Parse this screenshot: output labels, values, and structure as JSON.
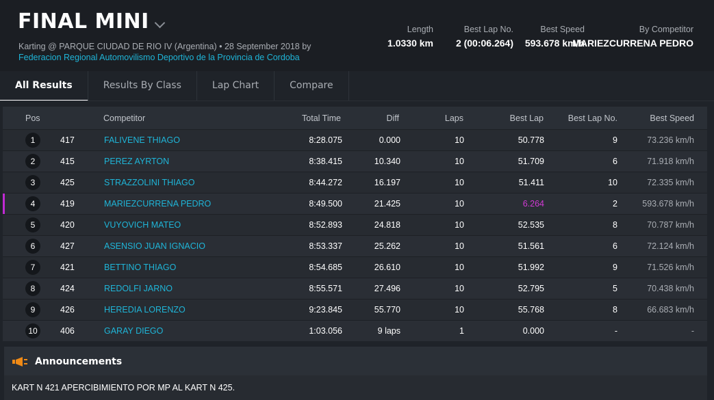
{
  "event": {
    "title": "FINAL MINI",
    "subtitle": "Karting @ PARQUE CIUDAD DE RIO IV (Argentina) • 28 September 2018 by",
    "organizer": "Federacion Regional Automovilismo Deportivo de la Provincia de Cordoba"
  },
  "stats": {
    "length_label": "Length",
    "length_value": "1.0330 km",
    "bestlap_label": "Best Lap No.",
    "bestlap_value": "2 (00:06.264)",
    "bestspeed_label": "Best Speed",
    "bestspeed_value": "593.678 km/h",
    "competitor_label": "By Competitor",
    "competitor_value": "MARIEZCURRENA PEDRO"
  },
  "tabs": [
    "All Results",
    "Results By Class",
    "Lap Chart",
    "Compare"
  ],
  "table": {
    "headers": {
      "pos": "Pos",
      "competitor": "Competitor",
      "total": "Total Time",
      "diff": "Diff",
      "laps": "Laps",
      "best_lap": "Best Lap",
      "best_lap_no": "Best Lap No.",
      "best_speed": "Best Speed"
    },
    "rows": [
      {
        "pos": "1",
        "no": "417",
        "name": "FALIVENE THIAGO",
        "total": "8:28.075",
        "diff": "0.000",
        "laps": "10",
        "best_lap": "50.778",
        "best_lap_no": "9",
        "best_speed": "73.236 km/h"
      },
      {
        "pos": "2",
        "no": "415",
        "name": "PEREZ AYRTON",
        "total": "8:38.415",
        "diff": "10.340",
        "laps": "10",
        "best_lap": "51.709",
        "best_lap_no": "6",
        "best_speed": "71.918 km/h"
      },
      {
        "pos": "3",
        "no": "425",
        "name": "STRAZZOLINI THIAGO",
        "total": "8:44.272",
        "diff": "16.197",
        "laps": "10",
        "best_lap": "51.411",
        "best_lap_no": "10",
        "best_speed": "72.335 km/h"
      },
      {
        "pos": "4",
        "no": "419",
        "name": "MARIEZCURRENA PEDRO",
        "total": "8:49.500",
        "diff": "21.425",
        "laps": "10",
        "best_lap": "6.264",
        "best_lap_no": "2",
        "best_speed": "593.678 km/h"
      },
      {
        "pos": "5",
        "no": "420",
        "name": "VUYOVICH MATEO",
        "total": "8:52.893",
        "diff": "24.818",
        "laps": "10",
        "best_lap": "52.535",
        "best_lap_no": "8",
        "best_speed": "70.787 km/h"
      },
      {
        "pos": "6",
        "no": "427",
        "name": "ASENSIO JUAN IGNACIO",
        "total": "8:53.337",
        "diff": "25.262",
        "laps": "10",
        "best_lap": "51.561",
        "best_lap_no": "6",
        "best_speed": "72.124 km/h"
      },
      {
        "pos": "7",
        "no": "421",
        "name": "BETTINO THIAGO",
        "total": "8:54.685",
        "diff": "26.610",
        "laps": "10",
        "best_lap": "51.992",
        "best_lap_no": "9",
        "best_speed": "71.526 km/h"
      },
      {
        "pos": "8",
        "no": "424",
        "name": "REDOLFI JARNO",
        "total": "8:55.571",
        "diff": "27.496",
        "laps": "10",
        "best_lap": "52.795",
        "best_lap_no": "5",
        "best_speed": "70.438 km/h"
      },
      {
        "pos": "9",
        "no": "426",
        "name": "HEREDIA LORENZO",
        "total": "9:23.845",
        "diff": "55.770",
        "laps": "10",
        "best_lap": "55.768",
        "best_lap_no": "8",
        "best_speed": "66.683 km/h"
      },
      {
        "pos": "10",
        "no": "406",
        "name": "GARAY DIEGO",
        "total": "1:03.056",
        "diff": "9 laps",
        "laps": "1",
        "best_lap": "0.000",
        "best_lap_no": "-",
        "best_speed": "-"
      }
    ]
  },
  "announcements": {
    "title": "Announcements",
    "icon": "megaphone-icon",
    "text": "KART N 421 APERCIBIMIENTO POR MP AL KART N 425."
  },
  "colors": {
    "accent_link": "#1fb5d8",
    "record_highlight": "#d13ad4",
    "announcement_icon": "#f08a16"
  }
}
